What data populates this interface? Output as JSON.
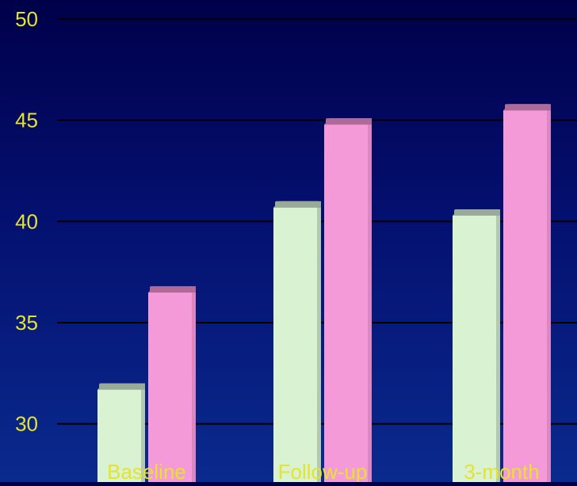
{
  "chart_data": {
    "type": "bar",
    "categories": [
      "Baseline",
      "Follow-up",
      "3-month"
    ],
    "series": [
      {
        "values": [
          32.0,
          41.0,
          40.6
        ],
        "color": "#d8f2d2",
        "top_color": "#9aaa98",
        "side_color": "#8a9a88"
      },
      {
        "values": [
          36.8,
          45.1,
          45.8
        ],
        "color": "#f49ad8",
        "top_color": "#b06a98",
        "side_color": "#c070a8"
      }
    ],
    "ylim": [
      28.3,
      50
    ],
    "yticks": [
      30,
      35,
      40,
      45,
      50
    ],
    "title": "",
    "xlabel": "",
    "ylabel": "",
    "grid": true,
    "colors": {
      "tick_label": "#e6e32e",
      "gridline": "#000000"
    }
  }
}
